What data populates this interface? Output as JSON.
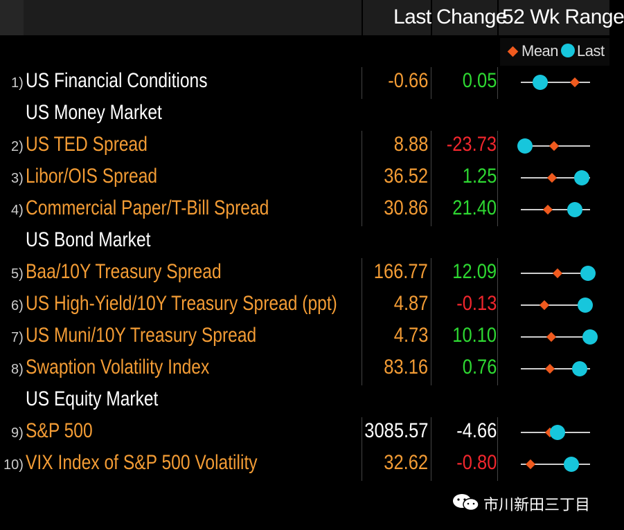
{
  "header": {
    "last_label": "Last",
    "change_label": "Change",
    "range_label": "52 Wk Range"
  },
  "legend": {
    "mean_label": "Mean",
    "last_label": "Last",
    "mean_color": "#f05a1e",
    "last_color": "#17c6dc"
  },
  "rows": [
    {
      "type": "data",
      "num": "1)",
      "label": "US Financial Conditions",
      "last": "-0.66",
      "change": "0.05",
      "change_sign": "pos",
      "label_color": "white",
      "mean_pos": 0.78,
      "last_pos": 0.28
    },
    {
      "type": "section",
      "label": "US Money Market"
    },
    {
      "type": "data",
      "num": "2)",
      "label": "US TED Spread",
      "last": "8.88",
      "change": "-23.73",
      "change_sign": "neg",
      "mean_pos": 0.48,
      "last_pos": 0.06
    },
    {
      "type": "data",
      "num": "3)",
      "label": "Libor/OIS Spread",
      "last": "36.52",
      "change": "1.25",
      "change_sign": "pos",
      "mean_pos": 0.45,
      "last_pos": 0.88
    },
    {
      "type": "data",
      "num": "4)",
      "label": "Commercial Paper/T-Bill Spread",
      "last": "30.86",
      "change": "21.40",
      "change_sign": "pos",
      "mean_pos": 0.39,
      "last_pos": 0.78
    },
    {
      "type": "section",
      "label": "US Bond Market"
    },
    {
      "type": "data",
      "num": "5)",
      "label": "Baa/10Y Treasury Spread",
      "last": "166.77",
      "change": "12.09",
      "change_sign": "pos",
      "mean_pos": 0.53,
      "last_pos": 0.97
    },
    {
      "type": "data",
      "num": "6)",
      "label": "US High-Yield/10Y Treasury Spread (ppt)",
      "last": "4.87",
      "change": "-0.13",
      "change_sign": "neg",
      "mean_pos": 0.34,
      "last_pos": 0.93
    },
    {
      "type": "data",
      "num": "7)",
      "label": "US Muni/10Y Treasury Spread",
      "last": "4.73",
      "change": "10.10",
      "change_sign": "pos",
      "mean_pos": 0.44,
      "last_pos": 1.0
    },
    {
      "type": "data",
      "num": "8)",
      "label": "Swaption Volatility Index",
      "last": "83.16",
      "change": "0.76",
      "change_sign": "pos",
      "mean_pos": 0.42,
      "last_pos": 0.85
    },
    {
      "type": "section",
      "label": "US Equity Market"
    },
    {
      "type": "data",
      "num": "9)",
      "label": "S&P 500",
      "last": "3085.57",
      "change": "-4.66",
      "change_sign": "neu",
      "last_color": "white",
      "mean_pos": 0.42,
      "last_pos": 0.53
    },
    {
      "type": "data",
      "num": "10)",
      "label": "VIX Index of S&P 500 Volatility",
      "last": "32.62",
      "change": "-0.80",
      "change_sign": "neg",
      "mean_pos": 0.14,
      "last_pos": 0.73
    }
  ],
  "watermark": {
    "text": "市川新田三丁目",
    "icon": "wechat-icon"
  }
}
